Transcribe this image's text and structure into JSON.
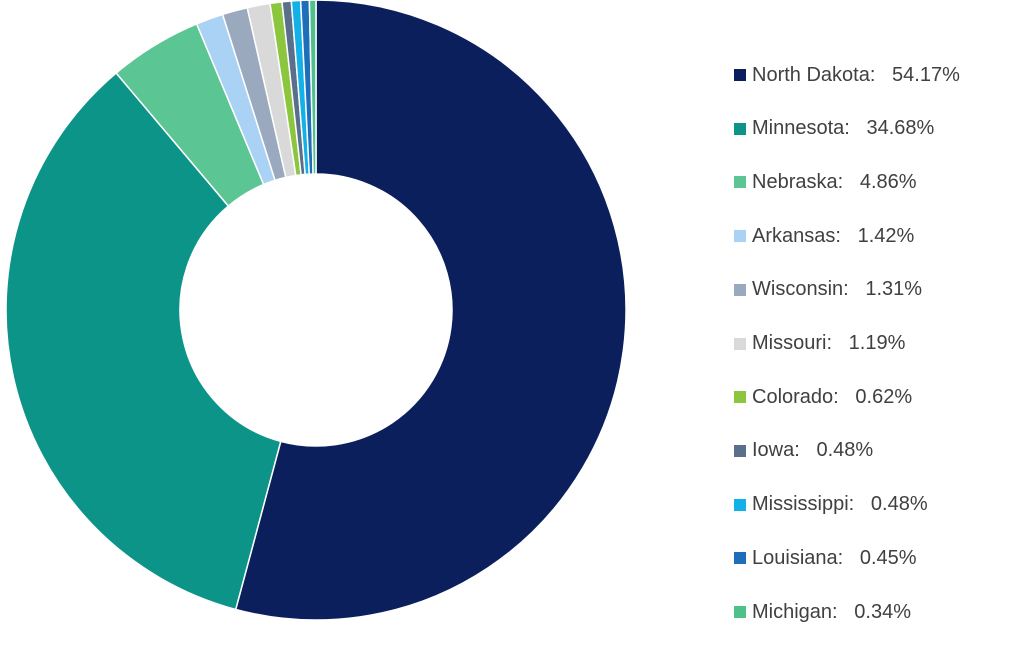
{
  "chart_data": {
    "type": "pie",
    "donut": true,
    "legend_position": "right",
    "slices": [
      {
        "name": "North Dakota",
        "value": 54.17,
        "label": "North Dakota:   54.17%",
        "color": "#0b1f5c"
      },
      {
        "name": "Minnesota",
        "value": 34.68,
        "label": "Minnesota:   34.68%",
        "color": "#0d9488"
      },
      {
        "name": "Nebraska",
        "value": 4.86,
        "label": "Nebraska:   4.86%",
        "color": "#5cc594"
      },
      {
        "name": "Arkansas",
        "value": 1.42,
        "label": "Arkansas:   1.42%",
        "color": "#a9d2f5"
      },
      {
        "name": "Wisconsin",
        "value": 1.31,
        "label": "Wisconsin:   1.31%",
        "color": "#9aa9bd"
      },
      {
        "name": "Missouri",
        "value": 1.19,
        "label": "Missouri:   1.19%",
        "color": "#d9d9d9"
      },
      {
        "name": "Colorado",
        "value": 0.62,
        "label": "Colorado:   0.62%",
        "color": "#8cc63f"
      },
      {
        "name": "Iowa",
        "value": 0.48,
        "label": "Iowa:   0.48%",
        "color": "#5a6f8c"
      },
      {
        "name": "Mississippi",
        "value": 0.48,
        "label": "Mississippi:   0.48%",
        "color": "#12b2e8"
      },
      {
        "name": "Louisiana",
        "value": 0.45,
        "label": "Louisiana:   0.45%",
        "color": "#1c6fb8"
      },
      {
        "name": "Michigan",
        "value": 0.34,
        "label": "Michigan:   0.34%",
        "color": "#4fc08a"
      }
    ]
  }
}
